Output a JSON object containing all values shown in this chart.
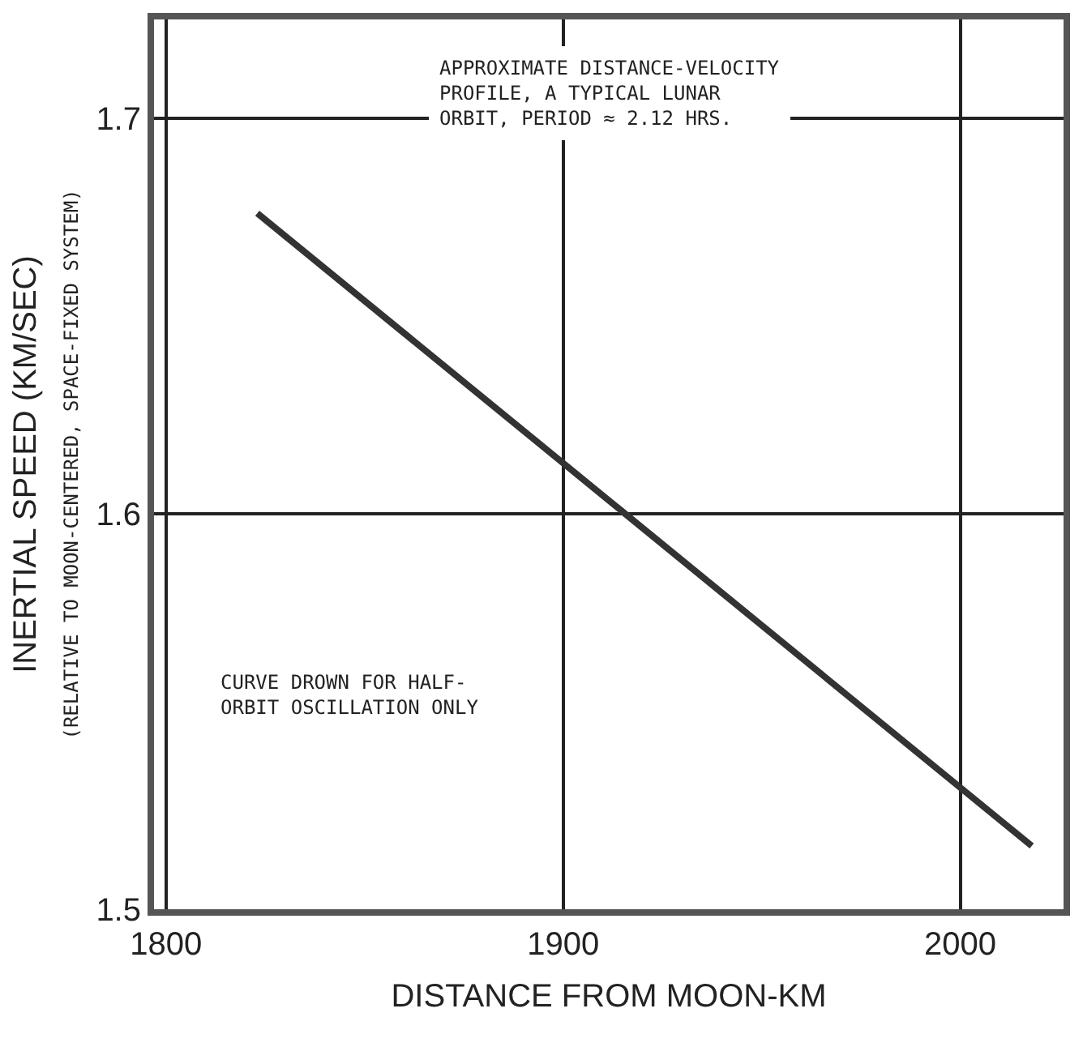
{
  "chart_data": {
    "type": "line",
    "xlabel": "DISTANCE FROM MOON-KM",
    "ylabel": "INERTIAL SPEED (KM/SEC)",
    "subtitle": "(RELATIVE TO MOON-CENTERED, SPACE-FIXED SYSTEM)",
    "x": [
      1823,
      2018
    ],
    "series": [
      {
        "color": "#333333",
        "values": [
          1.676,
          1.516
        ]
      }
    ],
    "xlim": [
      1797,
      2026
    ],
    "xticks": [
      1800,
      1900,
      2000
    ],
    "ylim": [
      1.5,
      1.725
    ],
    "yticks": [
      1.5,
      1.6,
      1.7
    ],
    "grid": true,
    "legend": false,
    "marker": "none",
    "line_style": "solid",
    "annotations": [
      "APPROXIMATE DISTANCE-VELOCITY\nPROFILE, A TYPICAL LUNAR\nORBIT, PERIOD ≈ 2.12 HRS.",
      "CURVE DROWN FOR HALF-\nORBIT OSCILLATION ONLY"
    ]
  }
}
